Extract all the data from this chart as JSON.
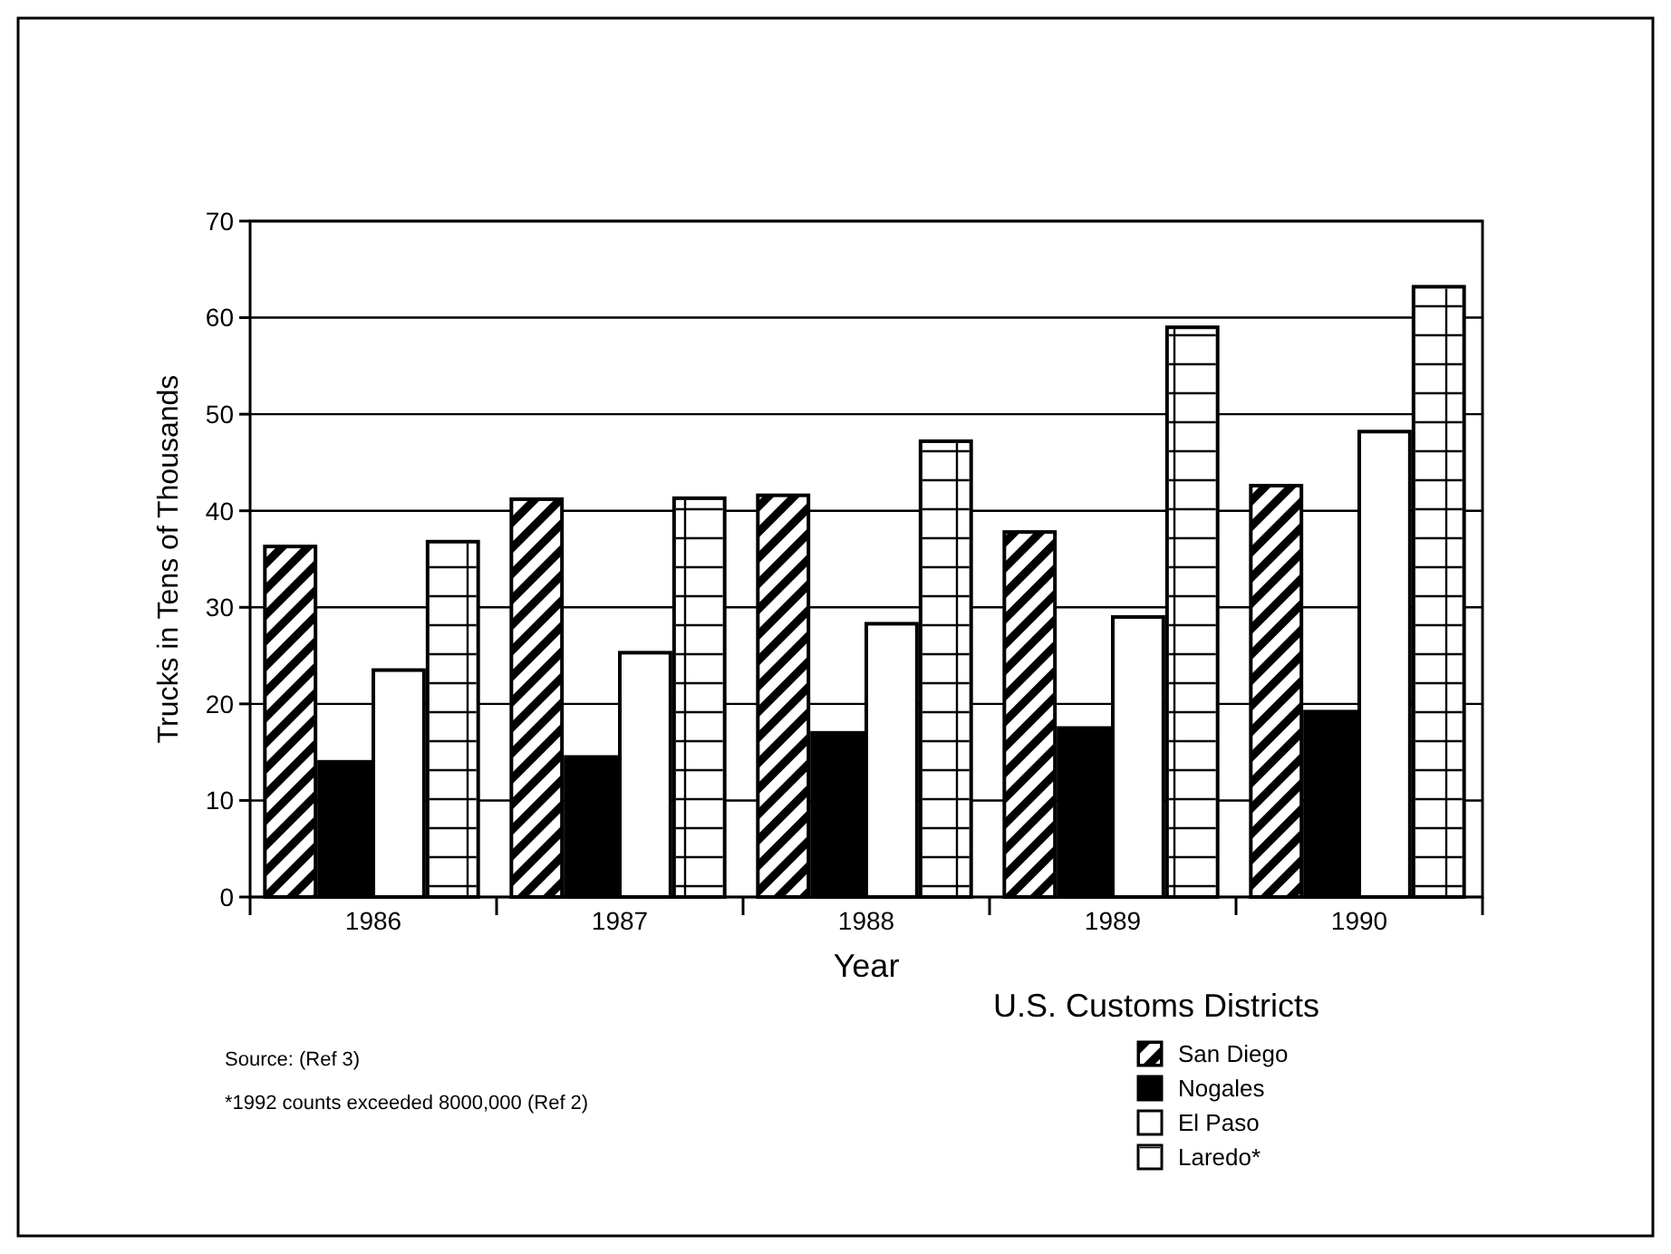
{
  "chart_data": {
    "type": "bar",
    "xlabel": "Year",
    "ylabel": "Trucks in Tens of Thousands",
    "legend_title": "U.S. Customs Districts",
    "categories": [
      "1986",
      "1987",
      "1988",
      "1989",
      "1990"
    ],
    "series": [
      {
        "name": "San Diego",
        "color": "#000000",
        "values": [
          36.3,
          41.2,
          41.6,
          37.8,
          42.6
        ]
      },
      {
        "name": "Nogales",
        "color": "#000000",
        "values": [
          14,
          14.5,
          17,
          17.5,
          19.2
        ]
      },
      {
        "name": "El Paso",
        "color": "#ffffff",
        "values": [
          23.5,
          25.3,
          28.3,
          29,
          48.2
        ]
      },
      {
        "name": "Laredo*",
        "color": "#ffffff",
        "values": [
          36.8,
          41.3,
          47.2,
          59,
          63.2
        ]
      }
    ],
    "ylim": [
      0,
      70
    ],
    "yticks": [
      0,
      10,
      20,
      30,
      40,
      50,
      60,
      70
    ],
    "grid": "y",
    "legend": "bottom right",
    "annotations": [
      "Source:  (Ref 3)",
      "*1992 counts exceeded 8000,000 (Ref 2)"
    ]
  }
}
